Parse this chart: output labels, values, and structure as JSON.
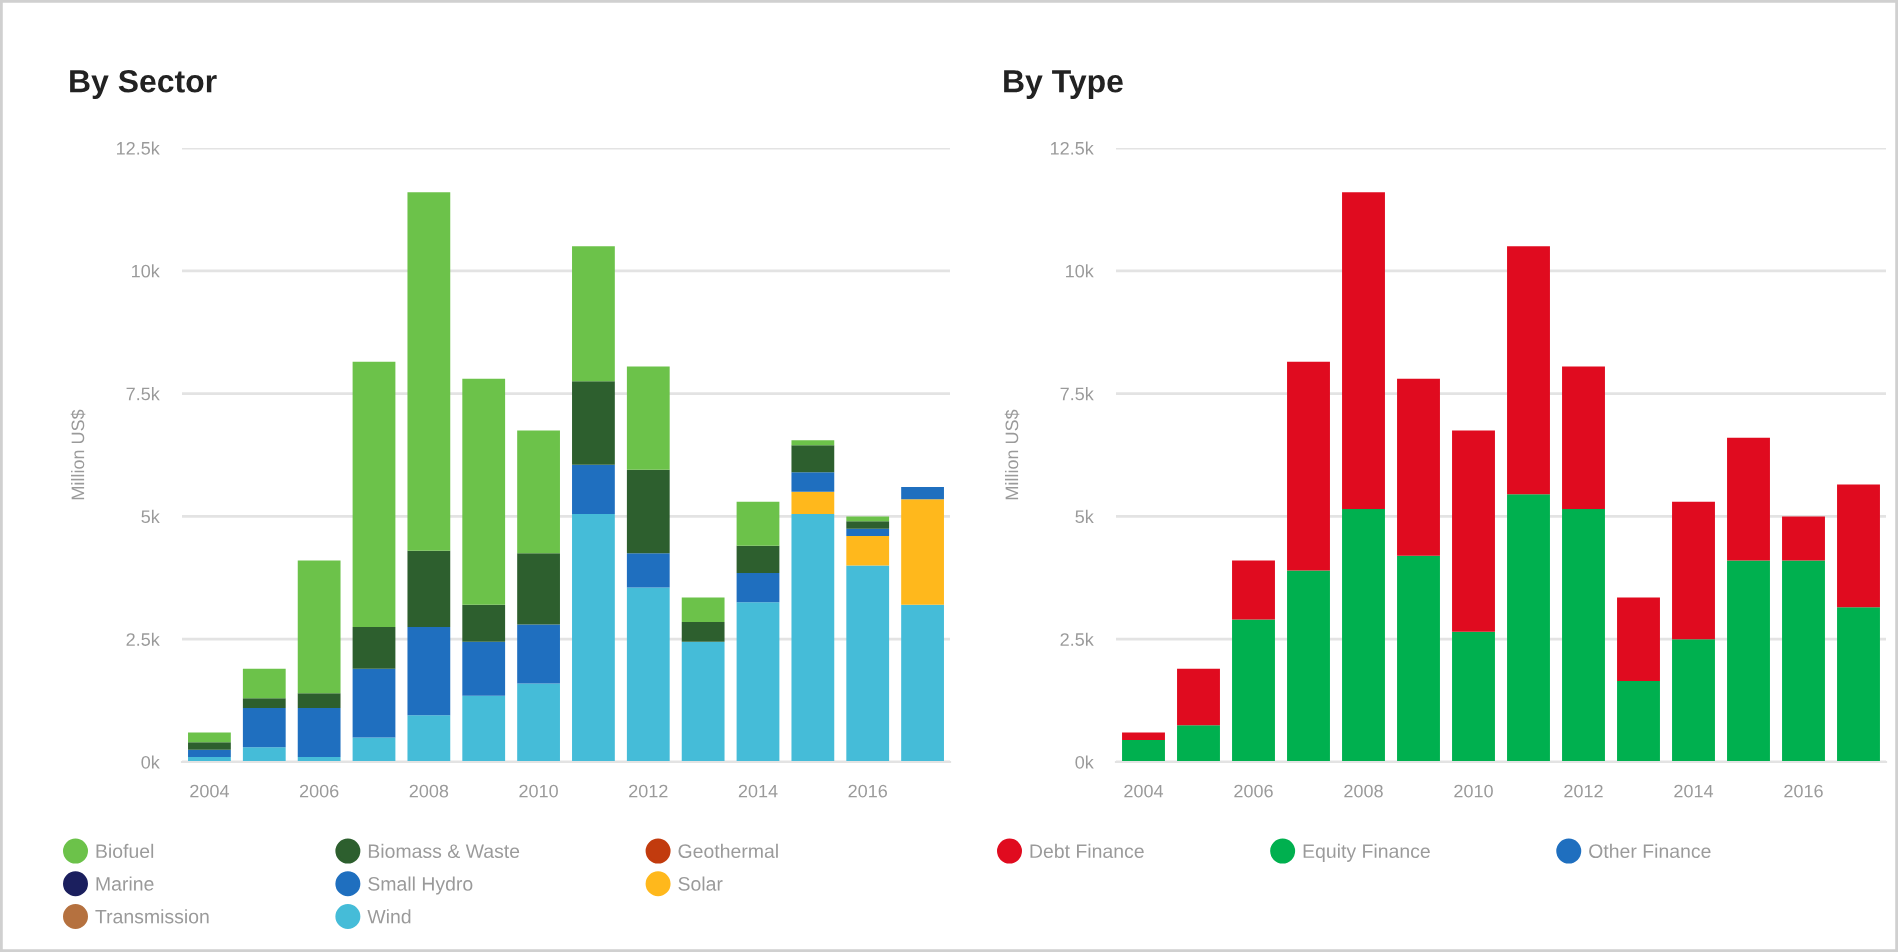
{
  "chart_data": [
    {
      "type": "bar",
      "title": "By Sector",
      "ylabel": "Million US$",
      "stacked": true,
      "grid": "y",
      "legend": "bottom",
      "marker": "circle",
      "categories": [
        "2004",
        null,
        "2006",
        null,
        "2008",
        null,
        "2010",
        null,
        "2012",
        null,
        "2014",
        null,
        "2016",
        null
      ],
      "ylim": [
        0,
        12500
      ],
      "yticks": [
        {
          "value": 0,
          "label": "0k"
        },
        {
          "value": 2500,
          "label": "2.5k"
        },
        {
          "value": 5000,
          "label": "5k"
        },
        {
          "value": 7500,
          "label": "7.5k"
        },
        {
          "value": 10000,
          "label": "10k"
        },
        {
          "value": 12500,
          "label": "12.5k"
        }
      ],
      "series": [
        {
          "name": "Wind",
          "color": "#45bcd8",
          "values": [
            100,
            300,
            100,
            500,
            950,
            1350,
            1600,
            5050,
            3550,
            2450,
            3250,
            5050,
            4000,
            3200
          ]
        },
        {
          "name": "Transmission",
          "color": "#b5713f",
          "values": [
            null,
            null,
            null,
            null,
            null,
            null,
            null,
            null,
            null,
            null,
            null,
            null,
            null,
            null
          ]
        },
        {
          "name": "Solar",
          "color": "#ffb81c",
          "values": [
            null,
            null,
            null,
            null,
            null,
            null,
            null,
            null,
            null,
            null,
            null,
            450,
            600,
            2150
          ]
        },
        {
          "name": "Small Hydro",
          "color": "#1f6fbf",
          "values": [
            150,
            800,
            1000,
            1400,
            1800,
            1100,
            1200,
            1000,
            700,
            null,
            600,
            400,
            150,
            250
          ]
        },
        {
          "name": "Marine",
          "color": "#1b1f5e",
          "values": [
            null,
            null,
            null,
            null,
            null,
            null,
            null,
            null,
            null,
            null,
            null,
            null,
            null,
            null
          ]
        },
        {
          "name": "Geothermal",
          "color": "#c23b0e",
          "values": [
            null,
            null,
            null,
            null,
            null,
            null,
            null,
            null,
            null,
            null,
            null,
            null,
            null,
            null
          ]
        },
        {
          "name": "Biomass & Waste",
          "color": "#2d5f2e",
          "values": [
            150,
            200,
            300,
            850,
            1550,
            750,
            1450,
            1700,
            1700,
            400,
            550,
            550,
            150,
            null
          ]
        },
        {
          "name": "Biofuel",
          "color": "#6cc24a",
          "values": [
            200,
            600,
            2700,
            5400,
            7300,
            4600,
            2500,
            2750,
            2100,
            500,
            900,
            100,
            100,
            null
          ]
        }
      ]
    },
    {
      "type": "bar",
      "title": "By Type",
      "ylabel": "Million US$",
      "stacked": true,
      "grid": "y",
      "legend": "bottom",
      "marker": "circle",
      "categories": [
        "2004",
        null,
        "2006",
        null,
        "2008",
        null,
        "2010",
        null,
        "2012",
        null,
        "2014",
        null,
        "2016",
        null
      ],
      "ylim": [
        0,
        12500
      ],
      "yticks": [
        {
          "value": 0,
          "label": "0k"
        },
        {
          "value": 2500,
          "label": "2.5k"
        },
        {
          "value": 5000,
          "label": "5k"
        },
        {
          "value": 7500,
          "label": "7.5k"
        },
        {
          "value": 10000,
          "label": "10k"
        },
        {
          "value": 12500,
          "label": "12.5k"
        }
      ],
      "series": [
        {
          "name": "Other Finance",
          "color": "#1f6fbf",
          "values": [
            null,
            null,
            null,
            null,
            null,
            null,
            null,
            null,
            null,
            null,
            null,
            null,
            null,
            null
          ]
        },
        {
          "name": "Equity Finance",
          "color": "#00b04f",
          "values": [
            450,
            750,
            2900,
            3900,
            5150,
            4200,
            2650,
            5450,
            5150,
            1650,
            2500,
            4100,
            4100,
            3150
          ]
        },
        {
          "name": "Debt Finance",
          "color": "#e00b1f",
          "values": [
            150,
            1150,
            1200,
            4250,
            6450,
            3600,
            4100,
            5050,
            2900,
            1700,
            2800,
            2500,
            900,
            2500
          ]
        }
      ]
    }
  ]
}
